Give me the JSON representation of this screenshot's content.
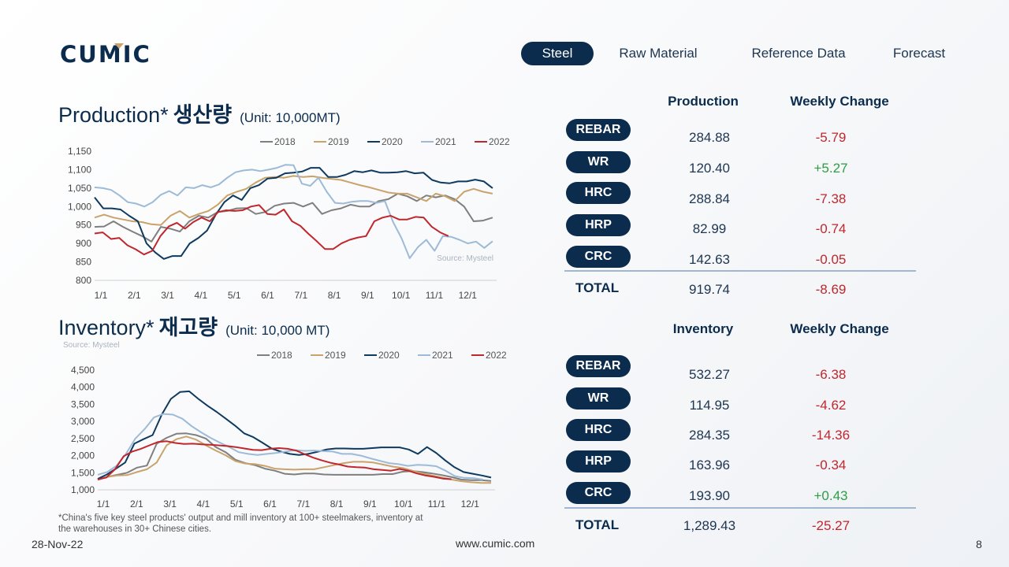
{
  "logo_text": "CUMIC",
  "nav": {
    "tabs": [
      "Steel",
      "Raw Material",
      "Reference Data",
      "Forecast"
    ],
    "active": "Steel"
  },
  "colors": {
    "navy": "#0b2c4d",
    "negative": "#c0272d",
    "positive": "#2e9e44",
    "2018": "#7f7f7f",
    "2019": "#c9a36b",
    "2020": "#0e3a5f",
    "2021": "#9dbbd6",
    "2022": "#c0272d"
  },
  "production": {
    "title_en": "Production*",
    "title_ko": "생산량",
    "unit": "(Unit: 10,000MT)",
    "col_production": "Production",
    "col_change": "Weekly Change",
    "rows": [
      {
        "label": "REBAR",
        "value": "284.88",
        "change": "-5.79"
      },
      {
        "label": "WR",
        "value": "120.40",
        "change": "+5.27"
      },
      {
        "label": "HRC",
        "value": "288.84",
        "change": "-7.38"
      },
      {
        "label": "HRP",
        "value": "82.99",
        "change": "-0.74"
      },
      {
        "label": "CRC",
        "value": "142.63",
        "change": "-0.05"
      }
    ],
    "total_label": "TOTAL",
    "total_value": "919.74",
    "total_change": "-8.69"
  },
  "inventory": {
    "title_en": "Inventory*",
    "title_ko": "재고량",
    "unit": "(Unit: 10,000 MT)",
    "col_inventory": "Inventory",
    "col_change": "Weekly Change",
    "rows": [
      {
        "label": "REBAR",
        "value": "532.27",
        "change": "-6.38"
      },
      {
        "label": "WR",
        "value": "114.95",
        "change": "-4.62"
      },
      {
        "label": "HRC",
        "value": "284.35",
        "change": "-14.36"
      },
      {
        "label": "HRP",
        "value": "163.96",
        "change": "-0.34"
      },
      {
        "label": "CRC",
        "value": "193.90",
        "change": "+0.43"
      }
    ],
    "total_label": "TOTAL",
    "total_value": "1,289.43",
    "total_change": "-25.27"
  },
  "chart_data": [
    {
      "type": "line",
      "x_labels": [
        "1/1",
        "2/1",
        "3/1",
        "4/1",
        "5/1",
        "6/1",
        "7/1",
        "8/1",
        "9/1",
        "10/1",
        "11/1",
        "12/1"
      ],
      "yticks": [
        "800",
        "850",
        "900",
        "950",
        "1,000",
        "1,050",
        "1,100",
        "1,150"
      ],
      "ylim": [
        800,
        1150
      ],
      "source": "Source: Mysteel",
      "legend_placement": "top",
      "series": [
        {
          "name": "2018",
          "values": [
            945,
            946,
            960,
            945,
            932,
            920,
            905,
            945,
            940,
            932,
            960,
            975,
            970,
            985,
            988,
            995,
            996,
            980,
            985,
            1002,
            1008,
            1010,
            1000,
            1010,
            980,
            990,
            995,
            1005,
            1000,
            1000,
            1015,
            1020,
            1035,
            1028,
            1015,
            1030,
            1025,
            1030,
            1020,
            1000,
            960,
            962,
            970
          ]
        },
        {
          "name": "2019",
          "values": [
            970,
            978,
            970,
            965,
            960,
            958,
            952,
            950,
            975,
            988,
            970,
            980,
            988,
            1005,
            1030,
            1040,
            1048,
            1065,
            1078,
            1080,
            1078,
            1083,
            1080,
            1082,
            1078,
            1075,
            1072,
            1065,
            1058,
            1052,
            1045,
            1038,
            1035,
            1035,
            1025,
            1015,
            1035,
            1028,
            1015,
            1040,
            1048,
            1040,
            1035
          ]
        },
        {
          "name": "2020",
          "values": [
            1025,
            995,
            995,
            992,
            975,
            960,
            900,
            876,
            858,
            866,
            866,
            900,
            915,
            935,
            978,
            1012,
            1030,
            1018,
            1050,
            1058,
            1076,
            1078,
            1090,
            1092,
            1095,
            1105,
            1105,
            1080,
            1080,
            1086,
            1096,
            1093,
            1098,
            1092,
            1092,
            1093,
            1096,
            1090,
            1092,
            1072,
            1065,
            1063,
            1068,
            1068,
            1073,
            1068,
            1050
          ]
        },
        {
          "name": "2021",
          "values": [
            1052,
            1050,
            1045,
            1030,
            1012,
            1008,
            1000,
            1012,
            1032,
            1042,
            1030,
            1052,
            1050,
            1058,
            1052,
            1060,
            1078,
            1093,
            1098,
            1100,
            1096,
            1100,
            1105,
            1113,
            1112,
            1062,
            1056,
            1078,
            1040,
            1010,
            1008,
            1013,
            1015,
            1015,
            1010,
            1015,
            958,
            915,
            860,
            890,
            910,
            880,
            920,
            918,
            910,
            900,
            905,
            888,
            906
          ]
        },
        {
          "name": "2022",
          "values": [
            927,
            930,
            912,
            915,
            895,
            884,
            870,
            880,
            920,
            946,
            956,
            940,
            958,
            970,
            960,
            985,
            990,
            988,
            990,
            1000,
            1004,
            980,
            978,
            992,
            960,
            948,
            926,
            906,
            885,
            885,
            900,
            910,
            916,
            920,
            960,
            970,
            975,
            965,
            965,
            972,
            970,
            945,
            930,
            920
          ]
        }
      ]
    },
    {
      "type": "line",
      "x_labels": [
        "1/1",
        "2/1",
        "3/1",
        "4/1",
        "5/1",
        "6/1",
        "7/1",
        "8/1",
        "9/1",
        "10/1",
        "11/1",
        "12/1"
      ],
      "yticks": [
        "1,000",
        "1,500",
        "2,000",
        "2,500",
        "3,000",
        "3,500",
        "4,000",
        "4,500"
      ],
      "ylim": [
        1000,
        4500
      ],
      "source": "Source: Mysteel",
      "legend_placement": "top",
      "series": [
        {
          "name": "2018",
          "values": [
            1300,
            1380,
            1440,
            1500,
            1650,
            1710,
            2350,
            2520,
            2640,
            2650,
            2600,
            2500,
            2250,
            2100,
            1880,
            1780,
            1720,
            1620,
            1560,
            1470,
            1450,
            1480,
            1480,
            1450,
            1440,
            1440,
            1440,
            1440,
            1440,
            1460,
            1460,
            1530,
            1550,
            1520,
            1480,
            1430,
            1370,
            1300,
            1280,
            1280,
            1260
          ]
        },
        {
          "name": "2019",
          "values": [
            1310,
            1380,
            1420,
            1430,
            1520,
            1600,
            1800,
            2300,
            2480,
            2560,
            2470,
            2300,
            2150,
            2010,
            1840,
            1770,
            1750,
            1700,
            1620,
            1600,
            1590,
            1600,
            1600,
            1660,
            1720,
            1780,
            1820,
            1820,
            1800,
            1740,
            1680,
            1640,
            1560,
            1480,
            1420,
            1360,
            1300,
            1250,
            1220,
            1200,
            1200
          ]
        },
        {
          "name": "2020",
          "values": [
            1320,
            1450,
            1620,
            1800,
            2350,
            2480,
            2600,
            3200,
            3660,
            3860,
            3880,
            3660,
            3460,
            3280,
            3080,
            2880,
            2650,
            2540,
            2380,
            2210,
            2120,
            2050,
            2020,
            2050,
            2110,
            2180,
            2210,
            2210,
            2200,
            2200,
            2220,
            2240,
            2240,
            2240,
            2180,
            2050,
            2250,
            2080,
            1860,
            1660,
            1520,
            1470,
            1420,
            1360
          ]
        },
        {
          "name": "2021",
          "values": [
            1440,
            1520,
            1700,
            2050,
            2500,
            2780,
            3120,
            3220,
            3200,
            3080,
            2860,
            2680,
            2520,
            2380,
            2250,
            2100,
            2050,
            2020,
            2050,
            2080,
            2120,
            2160,
            2140,
            2150,
            2130,
            2120,
            2050,
            2050,
            2000,
            1920,
            1850,
            1780,
            1750,
            1700,
            1730,
            1720,
            1690,
            1560,
            1400,
            1350,
            1340,
            1300
          ]
        },
        {
          "name": "2022",
          "values": [
            1300,
            1360,
            1600,
            1980,
            2120,
            2200,
            2300,
            2400,
            2420,
            2370,
            2340,
            2350,
            2330,
            2320,
            2300,
            2280,
            2250,
            2210,
            2170,
            2160,
            2200,
            2220,
            2200,
            2150,
            2040,
            1940,
            1860,
            1790,
            1740,
            1680,
            1660,
            1650,
            1600,
            1580,
            1560,
            1610,
            1560,
            1480,
            1420,
            1380,
            1330,
            1310
          ]
        }
      ]
    }
  ],
  "footnote": "*China's five key steel products' output and mill inventory at 100+ steelmakers, inventory at the warehouses in 30+ Chinese cities.",
  "footer": {
    "date": "28-Nov-22",
    "site": "www.cumic.com",
    "page": "8"
  }
}
